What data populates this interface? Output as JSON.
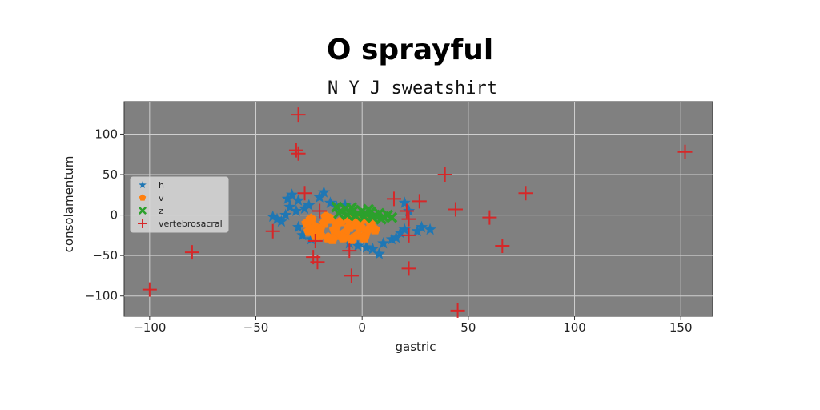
{
  "chart_data": {
    "type": "scatter",
    "title": "O sprayful",
    "subtitle": "N Y J sweatshirt",
    "xlabel": "gastric",
    "ylabel": "consolamentum",
    "xlim": [
      -112,
      165
    ],
    "ylim": [
      -125,
      140
    ],
    "xticks": [
      -100,
      -50,
      0,
      50,
      100,
      150
    ],
    "yticks": [
      -100,
      -50,
      0,
      50,
      100
    ],
    "xtick_labels": [
      "−100",
      "−50",
      "0",
      "50",
      "100",
      "150"
    ],
    "ytick_labels": [
      "−100",
      "−50",
      "0",
      "50",
      "100"
    ],
    "grid": true,
    "legend_position": "center-left",
    "background": "#808080",
    "series": [
      {
        "name": "h",
        "marker": "star",
        "color": "#1f77b4",
        "points": [
          [
            -35,
            20
          ],
          [
            -33,
            25
          ],
          [
            -30,
            18
          ],
          [
            -34,
            10
          ],
          [
            -31,
            5
          ],
          [
            -36,
            0
          ],
          [
            -42,
            -2
          ],
          [
            -38,
            -8
          ],
          [
            -30,
            -15
          ],
          [
            -28,
            -25
          ],
          [
            -24,
            -30
          ],
          [
            -18,
            28
          ],
          [
            -20,
            22
          ],
          [
            -15,
            15
          ],
          [
            -12,
            10
          ],
          [
            -8,
            12
          ],
          [
            -25,
            12
          ],
          [
            5,
            -42
          ],
          [
            8,
            -48
          ],
          [
            2,
            -40
          ],
          [
            14,
            -30
          ],
          [
            18,
            -22
          ],
          [
            20,
            -18
          ],
          [
            28,
            -15
          ],
          [
            32,
            -18
          ],
          [
            26,
            -20
          ],
          [
            22,
            5
          ],
          [
            20,
            15
          ],
          [
            -2,
            -38
          ],
          [
            -6,
            -35
          ],
          [
            10,
            -35
          ],
          [
            16,
            -28
          ],
          [
            -40,
            -5
          ],
          [
            -27,
            8
          ]
        ]
      },
      {
        "name": "v",
        "marker": "pentagon",
        "color": "#ff7f0e",
        "points": [
          [
            -26,
            -10
          ],
          [
            -25,
            -20
          ],
          [
            -24,
            -5
          ],
          [
            -22,
            -15
          ],
          [
            -20,
            -25
          ],
          [
            -18,
            -10
          ],
          [
            -16,
            -28
          ],
          [
            -15,
            -5
          ],
          [
            -13,
            -18
          ],
          [
            -11,
            -25
          ],
          [
            -10,
            -8
          ],
          [
            -8,
            -22
          ],
          [
            -6,
            -15
          ],
          [
            -5,
            -30
          ],
          [
            -3,
            -12
          ],
          [
            -2,
            -25
          ],
          [
            0,
            -5
          ],
          [
            2,
            -20
          ],
          [
            4,
            -10
          ],
          [
            6,
            -18
          ],
          [
            -22,
            -25
          ],
          [
            -14,
            -30
          ],
          [
            -9,
            -28
          ],
          [
            -4,
            -3
          ],
          [
            -17,
            -2
          ],
          [
            -12,
            -12
          ],
          [
            -7,
            -5
          ],
          [
            1,
            -28
          ],
          [
            -20,
            -18
          ],
          [
            -1,
            -15
          ]
        ]
      },
      {
        "name": "z",
        "marker": "x",
        "color": "#2ca02c",
        "points": [
          [
            -12,
            10
          ],
          [
            -10,
            5
          ],
          [
            -8,
            8
          ],
          [
            -6,
            3
          ],
          [
            -4,
            6
          ],
          [
            -2,
            2
          ],
          [
            0,
            5
          ],
          [
            2,
            1
          ],
          [
            4,
            4
          ],
          [
            6,
            0
          ],
          [
            8,
            2
          ],
          [
            10,
            -2
          ],
          [
            12,
            0
          ],
          [
            14,
            -3
          ],
          [
            -11,
            2
          ],
          [
            -7,
            0
          ],
          [
            -3,
            -1
          ],
          [
            1,
            -2
          ],
          [
            5,
            -3
          ],
          [
            9,
            -5
          ],
          [
            -5,
            9
          ],
          [
            3,
            7
          ]
        ]
      },
      {
        "name": "vertebrosacral",
        "marker": "plus",
        "color": "#d62728",
        "points": [
          [
            -30,
            124
          ],
          [
            -31,
            80
          ],
          [
            -30,
            76
          ],
          [
            -100,
            -92
          ],
          [
            -80,
            -46
          ],
          [
            -42,
            -20
          ],
          [
            -27,
            27
          ],
          [
            -22,
            -32
          ],
          [
            -23,
            -52
          ],
          [
            -21,
            -58
          ],
          [
            -20,
            5
          ],
          [
            -6,
            -44
          ],
          [
            -5,
            -75
          ],
          [
            15,
            20
          ],
          [
            21,
            5
          ],
          [
            22,
            -5
          ],
          [
            22,
            -25
          ],
          [
            22,
            -66
          ],
          [
            27,
            17
          ],
          [
            39,
            50
          ],
          [
            44,
            7
          ],
          [
            45,
            -118
          ],
          [
            60,
            -3
          ],
          [
            66,
            -38
          ],
          [
            77,
            27
          ],
          [
            152,
            78
          ]
        ]
      }
    ]
  }
}
